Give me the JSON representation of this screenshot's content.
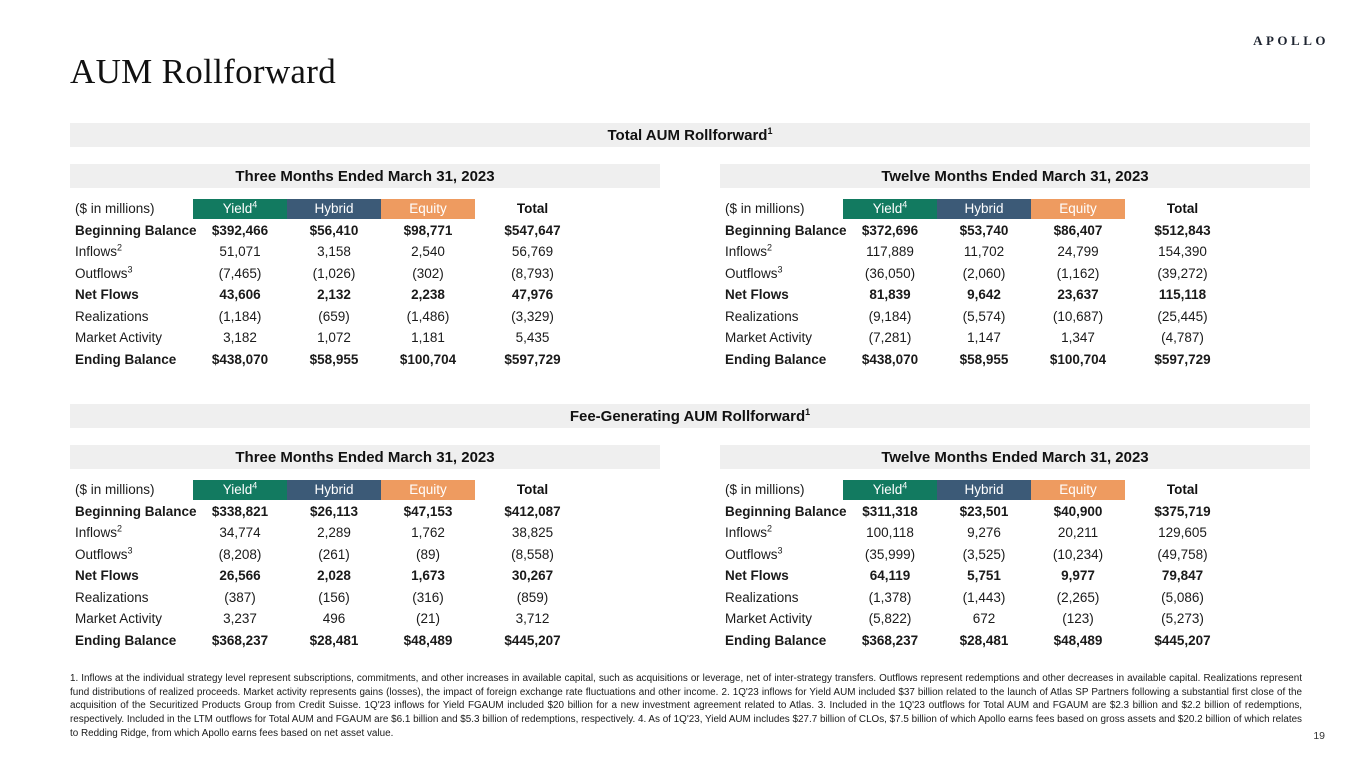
{
  "page": {
    "logo": "APOLLO",
    "title": "AUM Rollforward",
    "page_number": "19",
    "footnotes": "1. Inflows at the individual strategy level represent subscriptions, commitments, and other increases in available capital, such as acquisitions or leverage, net of inter-strategy transfers. Outflows represent redemptions and other decreases in available capital. Realizations represent fund distributions of realized proceeds. Market activity represents gains (losses), the impact of foreign exchange rate fluctuations and other income. 2. 1Q'23 inflows for Yield AUM included $37 billion related to the launch of Atlas SP Partners following a substantial first close of the acquisition of the Securitized Products Group from Credit Suisse. 1Q'23 inflows for Yield FGAUM included $20 billion for a new investment agreement related to Atlas. 3. Included in the 1Q'23 outflows for Total AUM and FGAUM are $2.3 billion and $2.2 billion of redemptions, respectively. Included in the LTM outflows for Total AUM and FGAUM are $6.1 billion and $5.3 billion of redemptions, respectively. 4. As of 1Q'23, Yield AUM includes $27.7 billion of CLOs, $7.5 billion of which Apollo earns fees based on gross assets and $20.2 billion of which relates to Redding Ridge, from which Apollo earns fees based on net asset value."
  },
  "colors": {
    "yield": "#127A60",
    "hybrid": "#3C5A77",
    "equity": "#EE9B60",
    "band": "#EFEFEF"
  },
  "unit_label": "($ in millions)",
  "columns": [
    {
      "key": "yield",
      "label": "Yield",
      "sup": "4"
    },
    {
      "key": "hybrid",
      "label": "Hybrid",
      "sup": ""
    },
    {
      "key": "equity",
      "label": "Equity",
      "sup": ""
    },
    {
      "key": "total",
      "label": "Total",
      "sup": ""
    }
  ],
  "sections": [
    {
      "title": "Total AUM Rollforward",
      "title_sup": "1",
      "tables": [
        {
          "period": "Three Months Ended March 31, 2023",
          "rows": [
            {
              "label": "Beginning Balance",
              "sup": "",
              "bold": true,
              "values": [
                "$392,466",
                "$56,410",
                "$98,771",
                "$547,647"
              ]
            },
            {
              "label": "Inflows",
              "sup": "2",
              "bold": false,
              "values": [
                "51,071",
                "3,158",
                "2,540",
                "56,769"
              ]
            },
            {
              "label": "Outflows",
              "sup": "3",
              "bold": false,
              "values": [
                "(7,465)",
                "(1,026)",
                "(302)",
                "(8,793)"
              ]
            },
            {
              "label": "Net Flows",
              "sup": "",
              "bold": true,
              "values": [
                "43,606",
                "2,132",
                "2,238",
                "47,976"
              ]
            },
            {
              "label": "Realizations",
              "sup": "",
              "bold": false,
              "values": [
                "(1,184)",
                "(659)",
                "(1,486)",
                "(3,329)"
              ]
            },
            {
              "label": "Market Activity",
              "sup": "",
              "bold": false,
              "values": [
                "3,182",
                "1,072",
                "1,181",
                "5,435"
              ]
            },
            {
              "label": "Ending Balance",
              "sup": "",
              "bold": true,
              "values": [
                "$438,070",
                "$58,955",
                "$100,704",
                "$597,729"
              ]
            }
          ]
        },
        {
          "period": "Twelve Months Ended March 31, 2023",
          "rows": [
            {
              "label": "Beginning Balance",
              "sup": "",
              "bold": true,
              "values": [
                "$372,696",
                "$53,740",
                "$86,407",
                "$512,843"
              ]
            },
            {
              "label": "Inflows",
              "sup": "2",
              "bold": false,
              "values": [
                "117,889",
                "11,702",
                "24,799",
                "154,390"
              ]
            },
            {
              "label": "Outflows",
              "sup": "3",
              "bold": false,
              "values": [
                "(36,050)",
                "(2,060)",
                "(1,162)",
                "(39,272)"
              ]
            },
            {
              "label": "Net Flows",
              "sup": "",
              "bold": true,
              "values": [
                "81,839",
                "9,642",
                "23,637",
                "115,118"
              ]
            },
            {
              "label": "Realizations",
              "sup": "",
              "bold": false,
              "values": [
                "(9,184)",
                "(5,574)",
                "(10,687)",
                "(25,445)"
              ]
            },
            {
              "label": "Market Activity",
              "sup": "",
              "bold": false,
              "values": [
                "(7,281)",
                "1,147",
                "1,347",
                "(4,787)"
              ]
            },
            {
              "label": "Ending Balance",
              "sup": "",
              "bold": true,
              "values": [
                "$438,070",
                "$58,955",
                "$100,704",
                "$597,729"
              ]
            }
          ]
        }
      ]
    },
    {
      "title": "Fee-Generating AUM Rollforward",
      "title_sup": "1",
      "tables": [
        {
          "period": "Three Months Ended March 31, 2023",
          "rows": [
            {
              "label": "Beginning Balance",
              "sup": "",
              "bold": true,
              "values": [
                "$338,821",
                "$26,113",
                "$47,153",
                "$412,087"
              ]
            },
            {
              "label": "Inflows",
              "sup": "2",
              "bold": false,
              "values": [
                "34,774",
                "2,289",
                "1,762",
                "38,825"
              ]
            },
            {
              "label": "Outflows",
              "sup": "3",
              "bold": false,
              "values": [
                "(8,208)",
                "(261)",
                "(89)",
                "(8,558)"
              ]
            },
            {
              "label": "Net Flows",
              "sup": "",
              "bold": true,
              "values": [
                "26,566",
                "2,028",
                "1,673",
                "30,267"
              ]
            },
            {
              "label": "Realizations",
              "sup": "",
              "bold": false,
              "values": [
                "(387)",
                "(156)",
                "(316)",
                "(859)"
              ]
            },
            {
              "label": "Market Activity",
              "sup": "",
              "bold": false,
              "values": [
                "3,237",
                "496",
                "(21)",
                "3,712"
              ]
            },
            {
              "label": "Ending Balance",
              "sup": "",
              "bold": true,
              "values": [
                "$368,237",
                "$28,481",
                "$48,489",
                "$445,207"
              ]
            }
          ]
        },
        {
          "period": "Twelve Months Ended March 31, 2023",
          "rows": [
            {
              "label": "Beginning Balance",
              "sup": "",
              "bold": true,
              "values": [
                "$311,318",
                "$23,501",
                "$40,900",
                "$375,719"
              ]
            },
            {
              "label": "Inflows",
              "sup": "2",
              "bold": false,
              "values": [
                "100,118",
                "9,276",
                "20,211",
                "129,605"
              ]
            },
            {
              "label": "Outflows",
              "sup": "3",
              "bold": false,
              "values": [
                "(35,999)",
                "(3,525)",
                "(10,234)",
                "(49,758)"
              ]
            },
            {
              "label": "Net Flows",
              "sup": "",
              "bold": true,
              "values": [
                "64,119",
                "5,751",
                "9,977",
                "79,847"
              ]
            },
            {
              "label": "Realizations",
              "sup": "",
              "bold": false,
              "values": [
                "(1,378)",
                "(1,443)",
                "(2,265)",
                "(5,086)"
              ]
            },
            {
              "label": "Market Activity",
              "sup": "",
              "bold": false,
              "values": [
                "(5,822)",
                "672",
                "(123)",
                "(5,273)"
              ]
            },
            {
              "label": "Ending Balance",
              "sup": "",
              "bold": true,
              "values": [
                "$368,237",
                "$28,481",
                "$48,489",
                "$445,207"
              ]
            }
          ]
        }
      ]
    }
  ]
}
